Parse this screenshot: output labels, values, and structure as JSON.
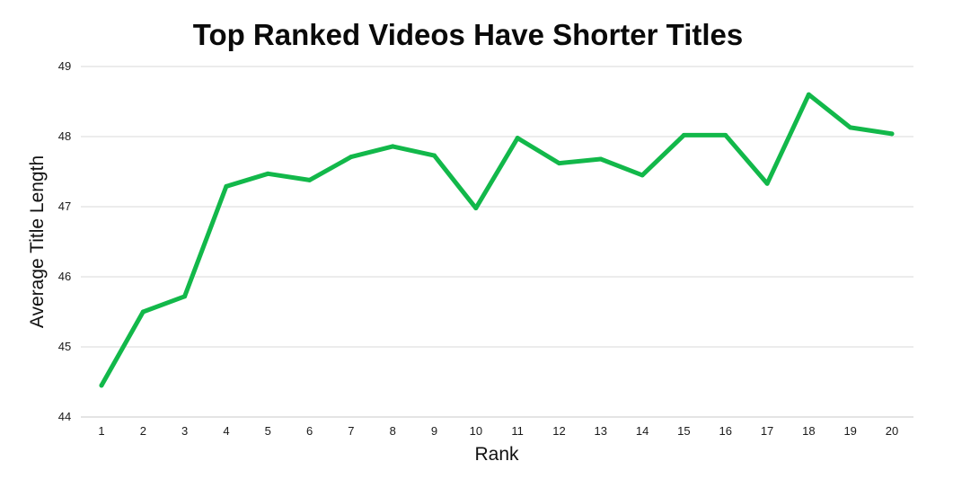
{
  "chart_data": {
    "type": "line",
    "title": "Top Ranked Videos Have Shorter Titles",
    "xlabel": "Rank",
    "ylabel": "Average Title Length",
    "x": [
      1,
      2,
      3,
      4,
      5,
      6,
      7,
      8,
      9,
      10,
      11,
      12,
      13,
      14,
      15,
      16,
      17,
      18,
      19,
      20
    ],
    "series": [
      {
        "values": [
          44.45,
          45.5,
          45.72,
          47.29,
          47.47,
          47.38,
          47.71,
          47.86,
          47.73,
          46.98,
          47.98,
          47.62,
          47.68,
          47.45,
          48.02,
          48.02,
          47.33,
          48.6,
          48.13,
          48.04
        ],
        "color": "#12b84a"
      }
    ],
    "ylim": [
      44,
      49
    ],
    "yticks": [
      44,
      45,
      46,
      47,
      48,
      49
    ],
    "grid": true,
    "legend": "none"
  }
}
